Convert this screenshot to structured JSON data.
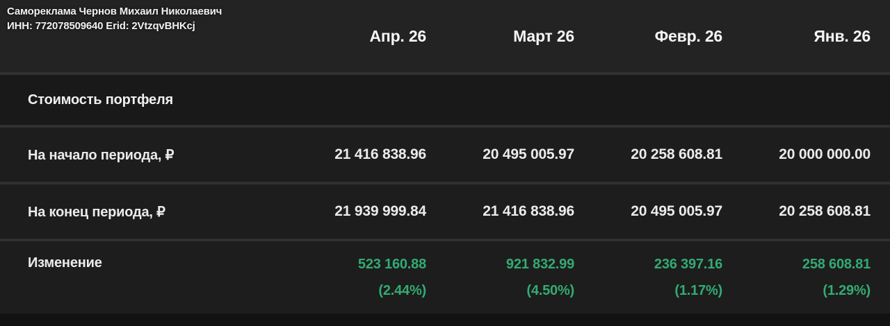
{
  "watermark": {
    "line1": "Самореклама Чернов Михаил Николаевич",
    "line2": "ИНН: 772078509640 Erid: 2VtzqvBHKcj"
  },
  "table": {
    "section_title": "Стоимость портфеля",
    "columns": [
      "Апр. 26",
      "Март 26",
      "Февр. 26",
      "Янв. 26"
    ],
    "rows": [
      {
        "label": "На начало периода, ₽",
        "values": [
          "21 416 838.96",
          "20 495 005.97",
          "20 258 608.81",
          "20 000 000.00"
        ]
      },
      {
        "label": "На конец периода, ₽",
        "values": [
          "21 939 999.84",
          "21 416 838.96",
          "20 495 005.97",
          "20 258 608.81"
        ]
      },
      {
        "label": "Изменение",
        "values": [
          "523 160.88",
          "921 832.99",
          "236 397.16",
          "258 608.81"
        ],
        "percents": [
          "(2.44%)",
          "(4.50%)",
          "(1.17%)",
          "(1.29%)"
        ]
      }
    ]
  },
  "colors": {
    "background": "#232323",
    "row_background": "#1d1d1d",
    "section_background": "#191919",
    "separator": "#303030",
    "text": "#ebebeb",
    "positive_change": "#33ab73"
  }
}
